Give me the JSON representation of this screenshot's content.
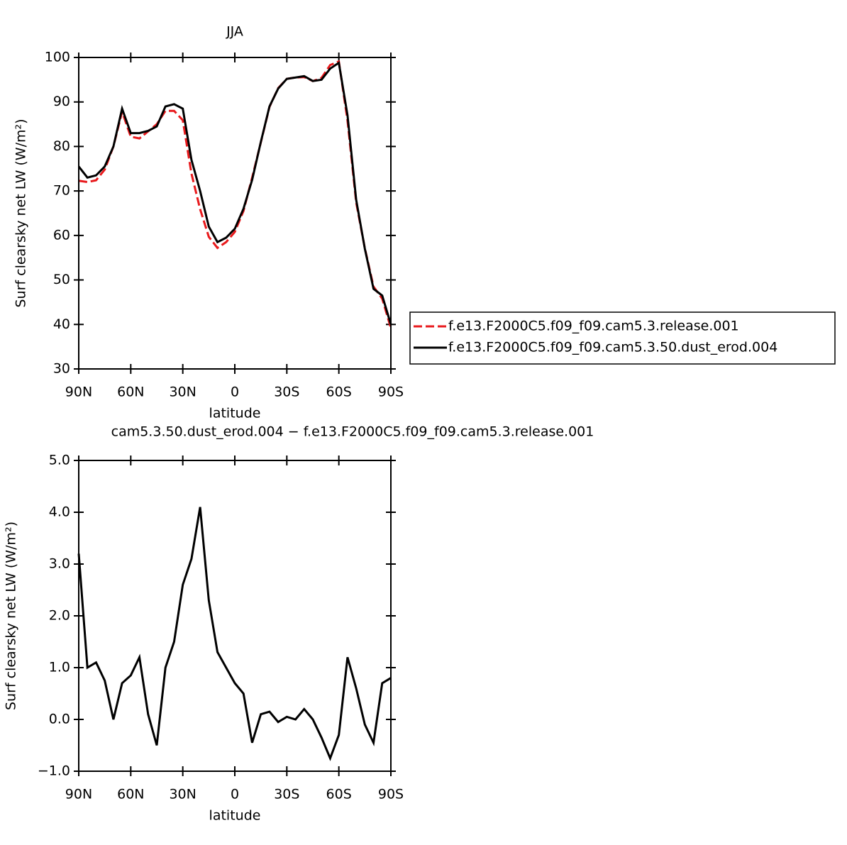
{
  "chart_data": [
    {
      "type": "line",
      "title": "JJA",
      "xlabel": "latitude",
      "ylabel": "Surf clearsky net LW (W/m²)",
      "x": [
        90,
        85,
        80,
        75,
        70,
        65,
        60,
        55,
        50,
        45,
        40,
        35,
        30,
        25,
        20,
        15,
        10,
        5,
        0,
        -5,
        -10,
        -15,
        -20,
        -25,
        -30,
        -35,
        -40,
        -45,
        -50,
        -55,
        -60,
        -65,
        -70,
        -75,
        -80,
        -85,
        -90
      ],
      "xlim": [
        90,
        -90
      ],
      "xticks": [
        {
          "value": 90,
          "label": "90N"
        },
        {
          "value": 60,
          "label": "60N"
        },
        {
          "value": 30,
          "label": "30N"
        },
        0,
        {
          "value": -30,
          "label": "30S"
        },
        {
          "value": -60,
          "label": "60S"
        },
        {
          "value": -90,
          "label": "90S"
        }
      ],
      "ylim": [
        30,
        100
      ],
      "yticks": [
        30,
        40,
        50,
        60,
        70,
        80,
        90,
        100
      ],
      "legend": "right",
      "series": [
        {
          "name": "f.e13.F2000C5.f09_f09.cam5.3.release.001",
          "color": "#e8191c",
          "dash": "dashed",
          "values": [
            72.3,
            72,
            72.4,
            74.8,
            80,
            87.8,
            82.2,
            81.8,
            83.4,
            85,
            88,
            88,
            85.9,
            73.9,
            65.9,
            59.7,
            57.2,
            58.5,
            60.8,
            65.5,
            73,
            80.9,
            88.9,
            93.1,
            95.2,
            95.5,
            95.6,
            94.7,
            95.4,
            98.3,
            99.1,
            85.8,
            67.4,
            57.1,
            48.5,
            45.8,
            39.2
          ]
        },
        {
          "name": "f.e13.F2000C5.f09_f09.cam5.3.50.dust_erod.004",
          "color": "#000000",
          "dash": "solid",
          "values": [
            75.5,
            73,
            73.5,
            75.5,
            80,
            88.5,
            83,
            83,
            83.5,
            84.5,
            89,
            89.5,
            88.5,
            77,
            70,
            62,
            58.5,
            59.5,
            61.5,
            66,
            72.5,
            81,
            89,
            93,
            95.2,
            95.5,
            95.8,
            94.7,
            95,
            97.5,
            98.8,
            87,
            68,
            57,
            48,
            46.5,
            40
          ]
        }
      ]
    },
    {
      "type": "line",
      "title": "cam5.3.50.dust_erod.004 − f.e13.F2000C5.f09_f09.cam5.3.release.001",
      "xlabel": "latitude",
      "ylabel": "Surf clearsky net LW (W/m²)",
      "x": [
        90,
        85,
        80,
        75,
        70,
        65,
        60,
        55,
        50,
        45,
        40,
        35,
        30,
        25,
        20,
        15,
        10,
        5,
        0,
        -5,
        -10,
        -15,
        -20,
        -25,
        -30,
        -35,
        -40,
        -45,
        -50,
        -55,
        -60,
        -65,
        -70,
        -75,
        -80,
        -85,
        -90
      ],
      "xlim": [
        90,
        -90
      ],
      "xticks": [
        {
          "value": 90,
          "label": "90N"
        },
        {
          "value": 60,
          "label": "60N"
        },
        {
          "value": 30,
          "label": "30N"
        },
        0,
        {
          "value": -30,
          "label": "30S"
        },
        {
          "value": -60,
          "label": "60S"
        },
        {
          "value": -90,
          "label": "90S"
        }
      ],
      "ylim": [
        -1,
        5
      ],
      "yticks": [
        {
          "value": -1,
          "label": "−1.0"
        },
        {
          "value": 0,
          "label": "0.0"
        },
        {
          "value": 1,
          "label": "1.0"
        },
        {
          "value": 2,
          "label": "2.0"
        },
        {
          "value": 3,
          "label": "3.0"
        },
        {
          "value": 4,
          "label": "4.0"
        },
        {
          "value": 5,
          "label": "5.0"
        }
      ],
      "series": [
        {
          "color": "#000000",
          "dash": "solid",
          "values": [
            3.2,
            1.0,
            1.1,
            0.75,
            0.0,
            0.7,
            0.85,
            1.2,
            0.1,
            -0.5,
            1.0,
            1.5,
            2.6,
            3.1,
            4.1,
            2.3,
            1.3,
            1.0,
            0.7,
            0.5,
            -0.45,
            0.1,
            0.15,
            -0.05,
            0.05,
            0.0,
            0.2,
            0.0,
            -0.35,
            -0.75,
            -0.3,
            1.2,
            0.6,
            -0.1,
            -0.45,
            0.7,
            0.8
          ]
        }
      ]
    }
  ]
}
